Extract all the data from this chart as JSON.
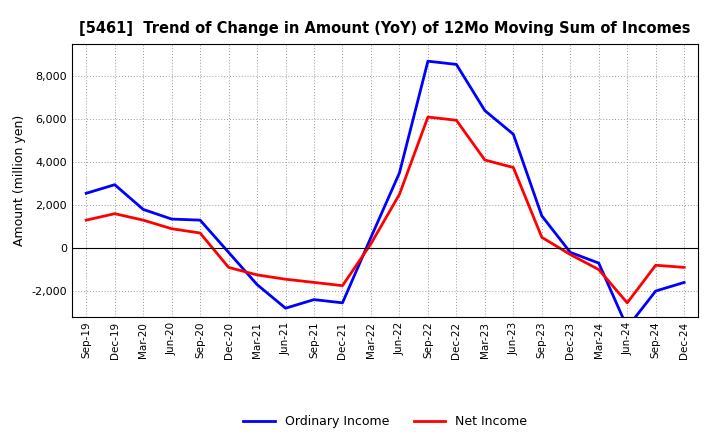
{
  "title": "[5461]  Trend of Change in Amount (YoY) of 12Mo Moving Sum of Incomes",
  "ylabel": "Amount (million yen)",
  "x_labels": [
    "Sep-19",
    "Dec-19",
    "Mar-20",
    "Jun-20",
    "Sep-20",
    "Dec-20",
    "Mar-21",
    "Jun-21",
    "Sep-21",
    "Dec-21",
    "Mar-22",
    "Jun-22",
    "Sep-22",
    "Dec-22",
    "Mar-23",
    "Jun-23",
    "Sep-23",
    "Dec-23",
    "Mar-24",
    "Jun-24",
    "Sep-24",
    "Dec-24"
  ],
  "ordinary_income": [
    2550,
    2950,
    1800,
    1350,
    1300,
    -200,
    -1700,
    -2800,
    -2400,
    -2550,
    500,
    3500,
    8700,
    8550,
    6400,
    5300,
    1500,
    -200,
    -700,
    -3700,
    -2000,
    -1600
  ],
  "net_income": [
    1300,
    1600,
    1300,
    900,
    700,
    -900,
    -1250,
    -1450,
    -1600,
    -1750,
    200,
    2500,
    6100,
    5950,
    4100,
    3750,
    500,
    -300,
    -1000,
    -2550,
    -800,
    -900
  ],
  "ordinary_color": "#0000ff",
  "net_color": "#ff0000",
  "ylim": [
    -3200,
    9500
  ],
  "yticks": [
    -2000,
    0,
    2000,
    4000,
    6000,
    8000
  ],
  "background_color": "#ffffff",
  "grid_color": "#999999"
}
